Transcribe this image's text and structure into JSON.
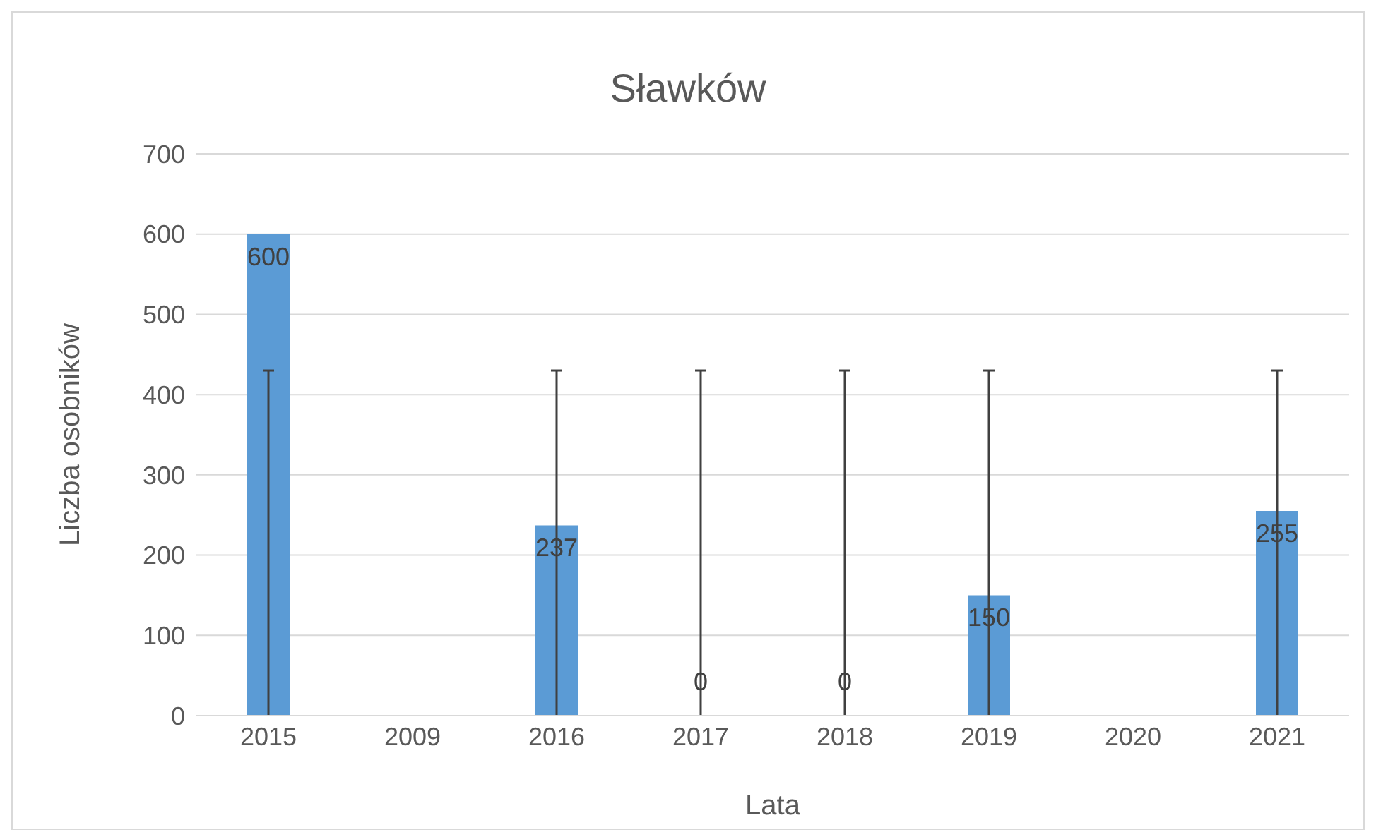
{
  "chart_data": {
    "type": "bar",
    "title": "Sławków",
    "xlabel": "Lata",
    "ylabel": "Liczba osobników",
    "categories": [
      "2015",
      "2009",
      "2016",
      "2017",
      "2018",
      "2019",
      "2020",
      "2021"
    ],
    "values": [
      600,
      null,
      237,
      0,
      0,
      150,
      null,
      255
    ],
    "errors": [
      [
        0,
        430
      ],
      null,
      [
        0,
        430
      ],
      [
        0,
        430
      ],
      [
        0,
        430
      ],
      [
        0,
        430
      ],
      null,
      [
        0,
        430
      ]
    ],
    "color": "#5b9bd5",
    "ylim": [
      0,
      700
    ],
    "yticks": [
      0,
      100,
      200,
      300,
      400,
      500,
      600,
      700
    ],
    "grid": "y",
    "data_labels": true,
    "legend": false
  }
}
